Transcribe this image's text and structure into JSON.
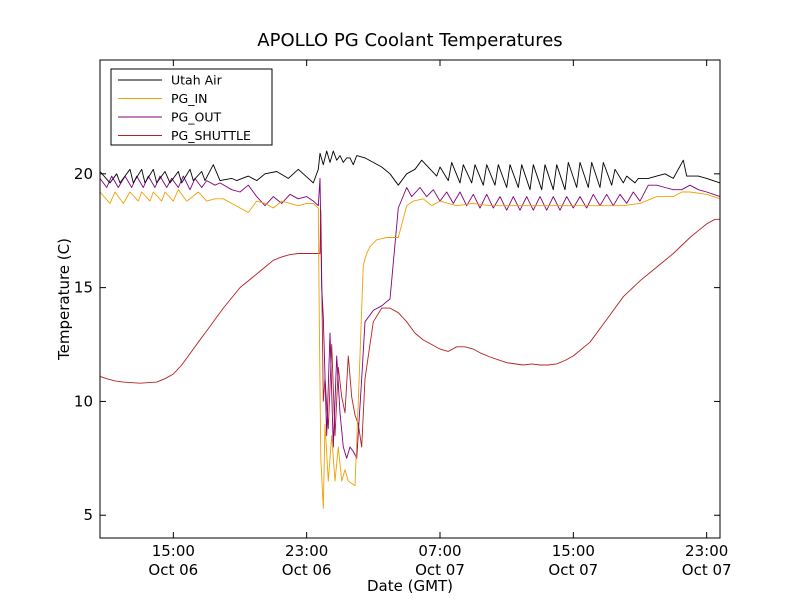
{
  "chart_data": {
    "type": "line",
    "title": "APOLLO PG Coolant Temperatures",
    "xlabel": "Date (GMT)",
    "ylabel": "Temperature (C)",
    "x_unit": "hours since Oct 06 00:00 GMT",
    "xlim": [
      10.6,
      47.8
    ],
    "ylim": [
      4,
      25
    ],
    "grid": false,
    "legend_position": "top-left",
    "x_ticks": [
      {
        "value": 15,
        "label1": "15:00",
        "label2": "Oct 06"
      },
      {
        "value": 23,
        "label1": "23:00",
        "label2": "Oct 06"
      },
      {
        "value": 31,
        "label1": "07:00",
        "label2": "Oct 07"
      },
      {
        "value": 39,
        "label1": "15:00",
        "label2": "Oct 07"
      },
      {
        "value": 47,
        "label1": "23:00",
        "label2": "Oct 07"
      }
    ],
    "y_ticks": [
      {
        "value": 5,
        "label": "5"
      },
      {
        "value": 10,
        "label": "10"
      },
      {
        "value": 15,
        "label": "15"
      },
      {
        "value": 20,
        "label": "20"
      }
    ],
    "series": [
      {
        "name": "Utah Air",
        "color": "#000000",
        "x": [
          10.6,
          11.2,
          11.6,
          11.8,
          12.4,
          12.6,
          13.1,
          13.3,
          13.8,
          14.0,
          14.5,
          14.8,
          15.3,
          15.5,
          16.0,
          16.2,
          16.7,
          16.9,
          17.4,
          17.8,
          18.5,
          18.8,
          19.5,
          20.0,
          20.5,
          21.2,
          21.9,
          22.5,
          23.4,
          23.7,
          23.8,
          24.0,
          24.2,
          24.4,
          24.6,
          24.8,
          25.0,
          25.2,
          25.4,
          25.6,
          25.8,
          26.0,
          26.5,
          27.0,
          27.5,
          28.0,
          28.5,
          29.0,
          29.5,
          29.9,
          30.8,
          31.0,
          31.5,
          31.7,
          32.2,
          32.4,
          32.9,
          33.1,
          33.6,
          33.8,
          34.3,
          34.5,
          35.0,
          35.2,
          35.7,
          35.9,
          36.4,
          36.6,
          37.1,
          37.3,
          37.8,
          38.0,
          38.5,
          38.7,
          39.2,
          39.4,
          39.9,
          40.1,
          40.6,
          40.8,
          41.3,
          41.5,
          42.0,
          42.2,
          42.7,
          42.9,
          43.5,
          44.0,
          44.5,
          45.0,
          45.6,
          45.8,
          46.5,
          47.0,
          47.8
        ],
        "values": [
          20.1,
          19.6,
          20.0,
          19.6,
          20.2,
          19.6,
          20.2,
          19.6,
          20.2,
          19.6,
          20.1,
          19.6,
          20.1,
          19.6,
          20.2,
          19.7,
          20.1,
          19.7,
          20.4,
          19.7,
          19.8,
          19.7,
          19.9,
          19.7,
          20.0,
          20.1,
          19.8,
          20.2,
          19.6,
          20.2,
          20.9,
          20.4,
          21.0,
          20.5,
          21.0,
          20.6,
          20.8,
          20.5,
          20.7,
          20.7,
          20.4,
          20.8,
          20.7,
          20.5,
          20.3,
          20.0,
          19.5,
          20.0,
          20.2,
          20.6,
          19.9,
          20.3,
          19.7,
          20.5,
          19.6,
          20.4,
          19.6,
          20.4,
          19.5,
          20.4,
          19.5,
          20.4,
          19.4,
          20.4,
          19.4,
          20.4,
          19.3,
          20.4,
          19.3,
          20.4,
          19.3,
          20.4,
          19.3,
          20.5,
          19.4,
          20.5,
          19.4,
          20.5,
          19.4,
          20.5,
          19.5,
          20.2,
          19.6,
          19.9,
          19.6,
          19.8,
          19.8,
          19.9,
          20.0,
          19.8,
          20.6,
          19.9,
          19.9,
          19.8,
          19.6
        ]
      },
      {
        "name": "PG_IN",
        "color": "#f0a000",
        "x": [
          10.6,
          11.2,
          11.5,
          12.0,
          12.4,
          12.9,
          13.1,
          13.6,
          13.8,
          14.3,
          14.5,
          15.0,
          15.3,
          15.8,
          16.0,
          16.5,
          17.0,
          17.5,
          18.0,
          18.5,
          19.0,
          19.5,
          20.0,
          20.5,
          21.0,
          21.5,
          22.0,
          22.5,
          23.0,
          23.4,
          23.7,
          23.75,
          23.85,
          24.0,
          24.1,
          24.3,
          24.5,
          24.7,
          24.9,
          25.1,
          25.3,
          25.5,
          25.7,
          25.9,
          26.1,
          26.4,
          26.6,
          26.8,
          27.2,
          27.8,
          28.5,
          29.0,
          29.4,
          30.0,
          30.5,
          31.0,
          32.0,
          33.0,
          34.0,
          35.0,
          36.0,
          37.0,
          38.0,
          39.0,
          40.0,
          41.0,
          42.0,
          43.0,
          44.0,
          45.0,
          45.5,
          46.0,
          47.0,
          47.8
        ],
        "values": [
          19.2,
          18.7,
          19.2,
          18.7,
          19.2,
          18.8,
          19.2,
          18.8,
          19.2,
          18.8,
          19.2,
          18.8,
          19.3,
          18.8,
          18.9,
          19.2,
          18.8,
          18.9,
          18.9,
          18.7,
          18.5,
          18.3,
          18.8,
          18.7,
          18.5,
          18.8,
          18.7,
          18.6,
          18.7,
          18.7,
          18.5,
          14.0,
          7.5,
          5.3,
          9.0,
          6.5,
          8.5,
          6.5,
          8.0,
          6.5,
          7.0,
          6.5,
          6.4,
          6.3,
          10.0,
          16.0,
          16.5,
          16.8,
          17.1,
          17.2,
          17.2,
          18.6,
          18.8,
          18.9,
          18.6,
          18.8,
          18.6,
          18.7,
          18.6,
          18.6,
          18.6,
          18.6,
          18.6,
          18.6,
          18.6,
          18.6,
          18.6,
          18.7,
          19.0,
          19.0,
          19.2,
          19.2,
          19.1,
          18.9
        ]
      },
      {
        "name": "PG_OUT",
        "color": "#800080",
        "x": [
          10.6,
          11.0,
          11.3,
          11.7,
          12.1,
          12.5,
          12.8,
          13.2,
          13.5,
          13.9,
          14.2,
          14.6,
          14.9,
          15.3,
          15.6,
          16.0,
          16.3,
          16.7,
          17.0,
          17.5,
          17.8,
          18.5,
          19.0,
          19.5,
          20.0,
          20.5,
          21.0,
          21.5,
          22.0,
          22.5,
          23.0,
          23.4,
          23.7,
          23.8,
          23.9,
          24.0,
          24.2,
          24.4,
          24.6,
          24.8,
          25.0,
          25.2,
          25.4,
          25.6,
          25.8,
          26.0,
          26.3,
          26.5,
          27.0,
          27.5,
          28.0,
          28.5,
          29.0,
          29.3,
          29.8,
          30.2,
          30.6,
          31.0,
          31.4,
          31.8,
          32.2,
          32.6,
          33.0,
          33.4,
          33.8,
          34.2,
          34.6,
          35.0,
          35.4,
          35.8,
          36.2,
          36.6,
          37.0,
          37.4,
          37.8,
          38.2,
          38.6,
          39.0,
          39.4,
          39.8,
          40.2,
          40.6,
          41.0,
          41.4,
          41.8,
          42.2,
          42.6,
          43.0,
          43.5,
          44.0,
          44.5,
          45.0,
          45.5,
          46.0,
          46.5,
          47.0,
          47.8
        ],
        "values": [
          19.8,
          19.4,
          19.9,
          19.4,
          19.9,
          19.4,
          19.9,
          19.4,
          19.9,
          19.4,
          19.9,
          19.4,
          19.8,
          19.4,
          19.9,
          19.3,
          19.8,
          19.4,
          19.7,
          19.5,
          19.6,
          19.3,
          19.2,
          19.5,
          19.0,
          18.6,
          19.0,
          18.7,
          19.1,
          18.9,
          19.0,
          18.8,
          18.6,
          19.8,
          15.0,
          13.7,
          8.5,
          13.0,
          8.0,
          12.0,
          9.5,
          8.0,
          7.5,
          8.0,
          7.8,
          7.5,
          11.0,
          13.5,
          14.0,
          14.2,
          14.5,
          18.5,
          19.4,
          19.0,
          19.4,
          19.0,
          19.3,
          18.8,
          19.2,
          18.7,
          19.2,
          18.6,
          19.1,
          18.5,
          19.1,
          18.5,
          19.0,
          18.4,
          19.0,
          18.4,
          19.0,
          18.4,
          19.0,
          18.4,
          19.0,
          18.4,
          19.0,
          18.5,
          19.0,
          18.5,
          19.1,
          18.6,
          19.1,
          18.6,
          19.1,
          18.7,
          19.2,
          18.8,
          19.5,
          19.5,
          19.4,
          19.3,
          19.3,
          19.5,
          19.3,
          19.2,
          19.0
        ]
      },
      {
        "name": "PG_SHUTTLE",
        "color": "#b22222",
        "x": [
          10.6,
          11.0,
          11.5,
          12.0,
          13.0,
          14.0,
          14.5,
          15.0,
          15.5,
          16.0,
          16.5,
          17.0,
          18.0,
          19.0,
          20.0,
          20.5,
          21.0,
          21.5,
          22.0,
          22.5,
          23.0,
          23.5,
          23.8,
          23.85,
          24.0,
          24.1,
          24.3,
          24.5,
          24.7,
          24.9,
          25.1,
          25.3,
          25.5,
          25.7,
          25.9,
          26.1,
          26.3,
          26.5,
          27.0,
          27.5,
          28.0,
          28.5,
          29.0,
          29.5,
          30.0,
          30.5,
          31.0,
          31.5,
          32.0,
          32.5,
          33.0,
          33.5,
          34.0,
          35.0,
          36.0,
          36.5,
          37.0,
          37.5,
          38.0,
          38.5,
          39.0,
          40.0,
          41.0,
          42.0,
          43.0,
          44.0,
          45.0,
          46.0,
          46.5,
          47.0,
          47.5,
          47.8
        ],
        "values": [
          11.1,
          11.0,
          10.9,
          10.85,
          10.8,
          10.85,
          11.0,
          11.2,
          11.6,
          12.1,
          12.6,
          13.1,
          14.1,
          15.0,
          15.6,
          15.9,
          16.2,
          16.35,
          16.45,
          16.5,
          16.5,
          16.5,
          16.5,
          18.4,
          10.0,
          11.0,
          8.8,
          12.5,
          8.5,
          11.5,
          10.2,
          9.5,
          12.0,
          10.2,
          9.4,
          9.0,
          8.0,
          11.0,
          13.5,
          14.1,
          14.1,
          13.9,
          13.5,
          13.0,
          12.7,
          12.5,
          12.3,
          12.2,
          12.4,
          12.4,
          12.3,
          12.1,
          11.95,
          11.7,
          11.6,
          11.65,
          11.6,
          11.6,
          11.65,
          11.8,
          12.0,
          12.6,
          13.6,
          14.6,
          15.3,
          15.9,
          16.5,
          17.2,
          17.5,
          17.8,
          18.0,
          18.0
        ]
      }
    ]
  }
}
